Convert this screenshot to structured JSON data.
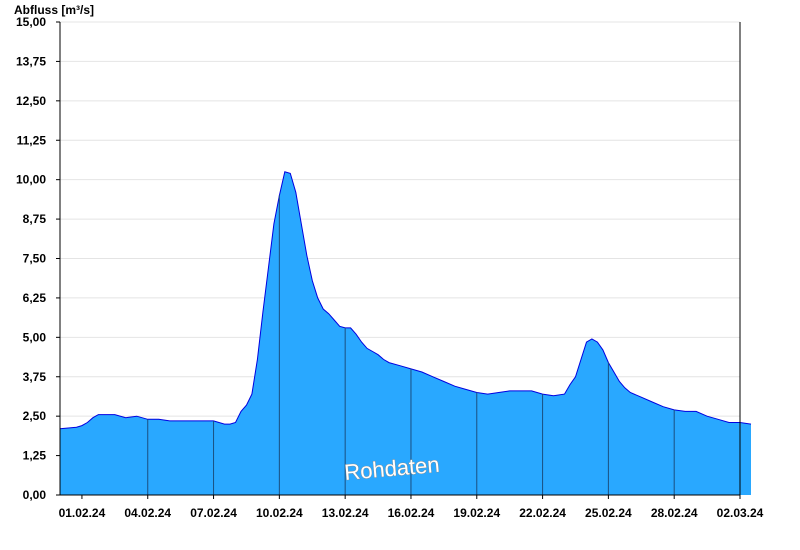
{
  "chart_data": {
    "type": "area",
    "title": "",
    "ylabel": "Abfluss [m³/s]",
    "xlabel": "",
    "ylim": [
      0,
      15
    ],
    "xlim": [
      "2024-01-31",
      "2024-03-02"
    ],
    "grid": "horizontal",
    "annotation": "Rohdaten",
    "colors": {
      "fill": "#29a8ff",
      "line": "#0000e0",
      "grid": "#e4e4e4",
      "axis": "#000000",
      "day_separator": "#1a4f80"
    },
    "y_ticks": [
      {
        "value": 0,
        "label": "0,00"
      },
      {
        "value": 1.25,
        "label": "1,25"
      },
      {
        "value": 2.5,
        "label": "2,50"
      },
      {
        "value": 3.75,
        "label": "3,75"
      },
      {
        "value": 5,
        "label": "5,00"
      },
      {
        "value": 6.25,
        "label": "6,25"
      },
      {
        "value": 7.5,
        "label": "7,50"
      },
      {
        "value": 8.75,
        "label": "8,75"
      },
      {
        "value": 10,
        "label": "10,00"
      },
      {
        "value": 11.25,
        "label": "11,25"
      },
      {
        "value": 12.5,
        "label": "12,50"
      },
      {
        "value": 13.75,
        "label": "13,75"
      },
      {
        "value": 15,
        "label": "15,00"
      }
    ],
    "x_ticks": [
      {
        "date": "2024-02-01",
        "label": "01.02.24"
      },
      {
        "date": "2024-02-04",
        "label": "04.02.24"
      },
      {
        "date": "2024-02-07",
        "label": "07.02.24"
      },
      {
        "date": "2024-02-10",
        "label": "10.02.24"
      },
      {
        "date": "2024-02-13",
        "label": "13.02.24"
      },
      {
        "date": "2024-02-16",
        "label": "16.02.24"
      },
      {
        "date": "2024-02-19",
        "label": "19.02.24"
      },
      {
        "date": "2024-02-22",
        "label": "22.02.24"
      },
      {
        "date": "2024-02-25",
        "label": "25.02.24"
      },
      {
        "date": "2024-02-28",
        "label": "28.02.24"
      },
      {
        "date": "2024-03-02",
        "label": "02.03.24"
      }
    ],
    "series": [
      {
        "x": [
          "2024-01-31T00:00",
          "2024-01-31T18:00",
          "2024-02-01T00:00",
          "2024-02-01T06:00",
          "2024-02-01T12:00",
          "2024-02-01T18:00",
          "2024-02-02T00:00",
          "2024-02-02T12:00",
          "2024-02-03T00:00",
          "2024-02-03T12:00",
          "2024-02-04T00:00",
          "2024-02-04T12:00",
          "2024-02-05T00:00",
          "2024-02-05T12:00",
          "2024-02-06T00:00",
          "2024-02-06T12:00",
          "2024-02-07T00:00",
          "2024-02-07T12:00",
          "2024-02-07T18:00",
          "2024-02-08T00:00",
          "2024-02-08T06:00",
          "2024-02-08T12:00",
          "2024-02-08T18:00",
          "2024-02-09T00:00",
          "2024-02-09T06:00",
          "2024-02-09T12:00",
          "2024-02-09T18:00",
          "2024-02-10T00:00",
          "2024-02-10T06:00",
          "2024-02-10T12:00",
          "2024-02-10T18:00",
          "2024-02-11T00:00",
          "2024-02-11T06:00",
          "2024-02-11T12:00",
          "2024-02-11T18:00",
          "2024-02-12T00:00",
          "2024-02-12T06:00",
          "2024-02-12T12:00",
          "2024-02-12T18:00",
          "2024-02-13T00:00",
          "2024-02-13T06:00",
          "2024-02-13T12:00",
          "2024-02-13T18:00",
          "2024-02-14T00:00",
          "2024-02-14T06:00",
          "2024-02-14T12:00",
          "2024-02-14T18:00",
          "2024-02-15T00:00",
          "2024-02-15T12:00",
          "2024-02-16T00:00",
          "2024-02-16T12:00",
          "2024-02-17T00:00",
          "2024-02-17T12:00",
          "2024-02-18T00:00",
          "2024-02-18T12:00",
          "2024-02-19T00:00",
          "2024-02-19T12:00",
          "2024-02-20T00:00",
          "2024-02-20T12:00",
          "2024-02-21T00:00",
          "2024-02-21T12:00",
          "2024-02-22T00:00",
          "2024-02-22T12:00",
          "2024-02-23T00:00",
          "2024-02-23T06:00",
          "2024-02-23T12:00",
          "2024-02-23T18:00",
          "2024-02-24T00:00",
          "2024-02-24T06:00",
          "2024-02-24T12:00",
          "2024-02-24T18:00",
          "2024-02-25T00:00",
          "2024-02-25T06:00",
          "2024-02-25T12:00",
          "2024-02-25T18:00",
          "2024-02-26T00:00",
          "2024-02-26T12:00",
          "2024-02-27T00:00",
          "2024-02-27T12:00",
          "2024-02-28T00:00",
          "2024-02-28T12:00",
          "2024-02-29T00:00",
          "2024-02-29T12:00",
          "2024-03-01T00:00",
          "2024-03-01T12:00",
          "2024-03-02T00:00",
          "2024-03-02T12:00"
        ],
        "y": [
          2.1,
          2.15,
          2.2,
          2.3,
          2.45,
          2.55,
          2.55,
          2.55,
          2.45,
          2.5,
          2.4,
          2.4,
          2.35,
          2.35,
          2.35,
          2.35,
          2.35,
          2.25,
          2.25,
          2.3,
          2.65,
          2.85,
          3.2,
          4.3,
          5.8,
          7.2,
          8.6,
          9.5,
          10.25,
          10.2,
          9.6,
          8.6,
          7.6,
          6.8,
          6.25,
          5.9,
          5.75,
          5.55,
          5.35,
          5.3,
          5.3,
          5.1,
          4.85,
          4.65,
          4.55,
          4.45,
          4.3,
          4.2,
          4.1,
          4.0,
          3.9,
          3.75,
          3.6,
          3.45,
          3.35,
          3.25,
          3.2,
          3.25,
          3.3,
          3.3,
          3.3,
          3.2,
          3.15,
          3.2,
          3.5,
          3.75,
          4.3,
          4.85,
          4.95,
          4.85,
          4.6,
          4.2,
          3.9,
          3.6,
          3.4,
          3.25,
          3.1,
          2.95,
          2.8,
          2.7,
          2.65,
          2.65,
          2.5,
          2.4,
          2.3,
          2.3,
          2.25
        ]
      }
    ]
  }
}
